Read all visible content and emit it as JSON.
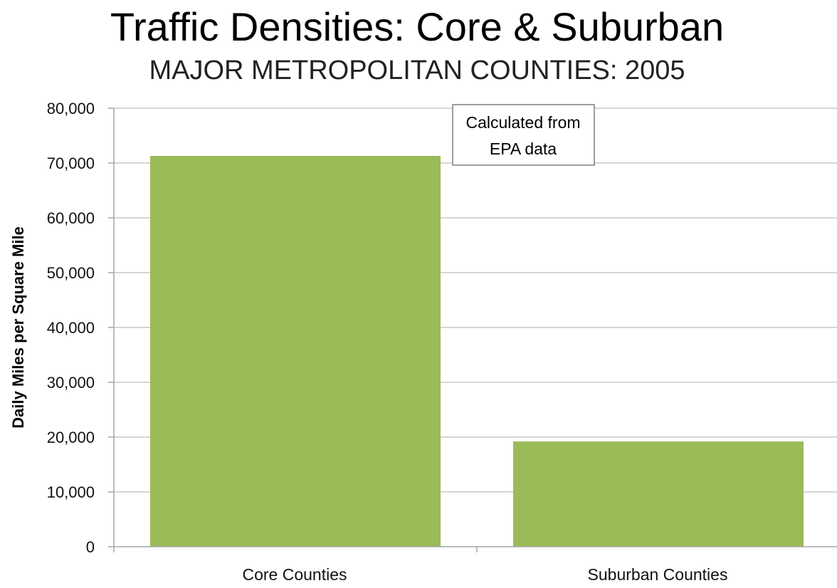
{
  "chart_data": {
    "type": "bar",
    "title": "Traffic Densities: Core & Suburban",
    "subtitle": "MAJOR METROPOLITAN COUNTIES: 2005",
    "ylabel": "Daily Miles per Square Mile",
    "xlabel": "",
    "categories": [
      "Core Counties",
      "Suburban Counties"
    ],
    "values": [
      71300,
      19200
    ],
    "ylim": [
      0,
      80000
    ],
    "yticks": [
      0,
      10000,
      20000,
      30000,
      40000,
      50000,
      60000,
      70000,
      80000
    ],
    "ytick_labels": [
      "0",
      "10,000",
      "20,000",
      "30,000",
      "40,000",
      "50,000",
      "60,000",
      "70,000",
      "80,000"
    ],
    "grid": true,
    "legend": "none",
    "annotation": {
      "lines": [
        "Calculated from",
        "EPA data"
      ],
      "placement": "top-center"
    },
    "colors": {
      "bar": "#9BBB59",
      "grid": "#C8C8C8",
      "axis": "#A6A6A6",
      "annotation_border": "#7F7F7F"
    }
  }
}
